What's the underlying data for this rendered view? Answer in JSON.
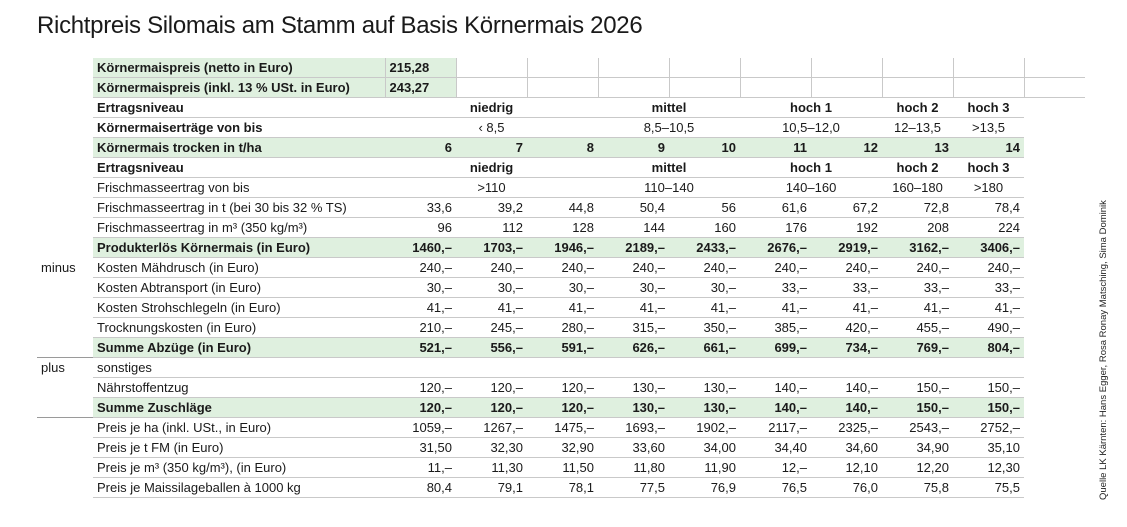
{
  "title": "Richtpreis Silomais am Stamm auf Basis Körnermais 2026",
  "source": "Quelle LK Kärnten: Hans Egger, Rosa Ronay Matsching, Sima Dominik",
  "price_net": {
    "label": "Körnermaispreis (netto in Euro)",
    "value": "215,28"
  },
  "price_gross": {
    "label": "Körnermaispreis (inkl. 13 % USt. in Euro)",
    "value": "243,27"
  },
  "header1": {
    "label": "Ertragsniveau",
    "niedrig": "niedrig",
    "mittel": "mittel",
    "hoch1": "hoch 1",
    "hoch2": "hoch 2",
    "hoch3": "hoch 3"
  },
  "yields": {
    "label": "Körnermaiserträge von bis",
    "niedrig": "‹ 8,5",
    "mittel": "8,5–10,5",
    "hoch1": "10,5–12,0",
    "hoch2": "12–13,5",
    "hoch3": ">13,5"
  },
  "dry": {
    "label": "Körnermais trocken in t/ha",
    "values": [
      "6",
      "7",
      "8",
      "9",
      "10",
      "11",
      "12",
      "13",
      "14"
    ]
  },
  "header2": {
    "label": "Ertragsniveau",
    "niedrig": "niedrig",
    "mittel": "mittel",
    "hoch1": "hoch 1",
    "hoch2": "hoch 2",
    "hoch3": "hoch 3"
  },
  "fresh_range": {
    "label": "Frischmasseertrag von bis",
    "niedrig": ">110",
    "mittel": "110–140",
    "hoch1": "140–160",
    "hoch2": "160–180",
    "hoch3": ">180"
  },
  "rows": [
    {
      "key": "fm_t",
      "prefix": "",
      "label": "Frischmasseertrag in t (bei 30 bis 32 % TS)",
      "values": [
        "33,6",
        "39,2",
        "44,8",
        "50,4",
        "56",
        "61,6",
        "67,2",
        "72,8",
        "78,4"
      ]
    },
    {
      "key": "fm_m3",
      "prefix": "",
      "label": "Frischmasseertrag in m³ (350 kg/m³)",
      "values": [
        "96",
        "112",
        "128",
        "144",
        "160",
        "176",
        "192",
        "208",
        "224"
      ]
    },
    {
      "key": "erloes",
      "prefix": "",
      "label": "Produkterlös Körnermais (in Euro)",
      "values": [
        "1460,–",
        "1703,–",
        "1946,–",
        "2189,–",
        "2433,–",
        "2676,–",
        "2919,–",
        "3162,–",
        "3406,–"
      ]
    },
    {
      "key": "maehdrusch",
      "prefix": "minus",
      "label": "Kosten Mähdrusch (in Euro)",
      "values": [
        "240,–",
        "240,–",
        "240,–",
        "240,–",
        "240,–",
        "240,–",
        "240,–",
        "240,–",
        "240,–"
      ]
    },
    {
      "key": "abtransport",
      "prefix": "",
      "label": "Kosten Abtransport (in Euro)",
      "values": [
        "30,–",
        "30,–",
        "30,–",
        "30,–",
        "30,–",
        "33,–",
        "33,–",
        "33,–",
        "33,–"
      ]
    },
    {
      "key": "strohschlegeln",
      "prefix": "",
      "label": "Kosten Strohschlegeln (in Euro)",
      "values": [
        "41,–",
        "41,–",
        "41,–",
        "41,–",
        "41,–",
        "41,–",
        "41,–",
        "41,–",
        "41,–"
      ]
    },
    {
      "key": "trocknung",
      "prefix": "",
      "label": "Trocknungskosten (in Euro)",
      "values": [
        "210,–",
        "245,–",
        "280,–",
        "315,–",
        "350,–",
        "385,–",
        "420,–",
        "455,–",
        "490,–"
      ]
    },
    {
      "key": "summe_abzuege",
      "prefix": "",
      "label": "Summe Abzüge (in Euro)",
      "values": [
        "521,–",
        "556,–",
        "591,–",
        "626,–",
        "661,–",
        "699,–",
        "734,–",
        "769,–",
        "804,–"
      ]
    },
    {
      "key": "sonstiges",
      "prefix": "plus",
      "label": "sonstiges",
      "values": [
        "",
        "",
        "",
        "",
        "",
        "",
        "",
        "",
        ""
      ]
    },
    {
      "key": "naehrstoff",
      "prefix": "",
      "label": "Nährstoffentzug",
      "values": [
        "120,–",
        "120,–",
        "120,–",
        "130,–",
        "130,–",
        "140,–",
        "140,–",
        "150,–",
        "150,–"
      ]
    },
    {
      "key": "summe_zuschlaege",
      "prefix": "",
      "label": "Summe Zuschläge",
      "values": [
        "120,–",
        "120,–",
        "120,–",
        "130,–",
        "130,–",
        "140,–",
        "140,–",
        "150,–",
        "150,–"
      ]
    },
    {
      "key": "preis_ha",
      "prefix": "",
      "label": "Preis je ha (inkl. USt., in Euro)",
      "values": [
        "1059,–",
        "1267,–",
        "1475,–",
        "1693,–",
        "1902,–",
        "2117,–",
        "2325,–",
        "2543,–",
        "2752,–"
      ]
    },
    {
      "key": "preis_tfm",
      "prefix": "",
      "label": "Preis je t FM (in Euro)",
      "values": [
        "31,50",
        "32,30",
        "32,90",
        "33,60",
        "34,00",
        "34,40",
        "34,60",
        "34,90",
        "35,10"
      ]
    },
    {
      "key": "preis_m3",
      "prefix": "",
      "label": "Preis je m³ (350 kg/m³), (in Euro)",
      "values": [
        "11,–",
        "11,30",
        "11,50",
        "11,80",
        "11,90",
        "12,–",
        "12,10",
        "12,20",
        "12,30"
      ]
    },
    {
      "key": "preis_ballen",
      "prefix": "",
      "label": "Preis je Maissilageballen à 1000 kg",
      "values": [
        "80,4",
        "79,1",
        "78,1",
        "77,5",
        "76,9",
        "76,5",
        "76,0",
        "75,8",
        "75,5"
      ]
    }
  ],
  "colors": {
    "highlight": "#dff0df",
    "rule": "#c9c9c9",
    "text": "#1a1a1a"
  }
}
